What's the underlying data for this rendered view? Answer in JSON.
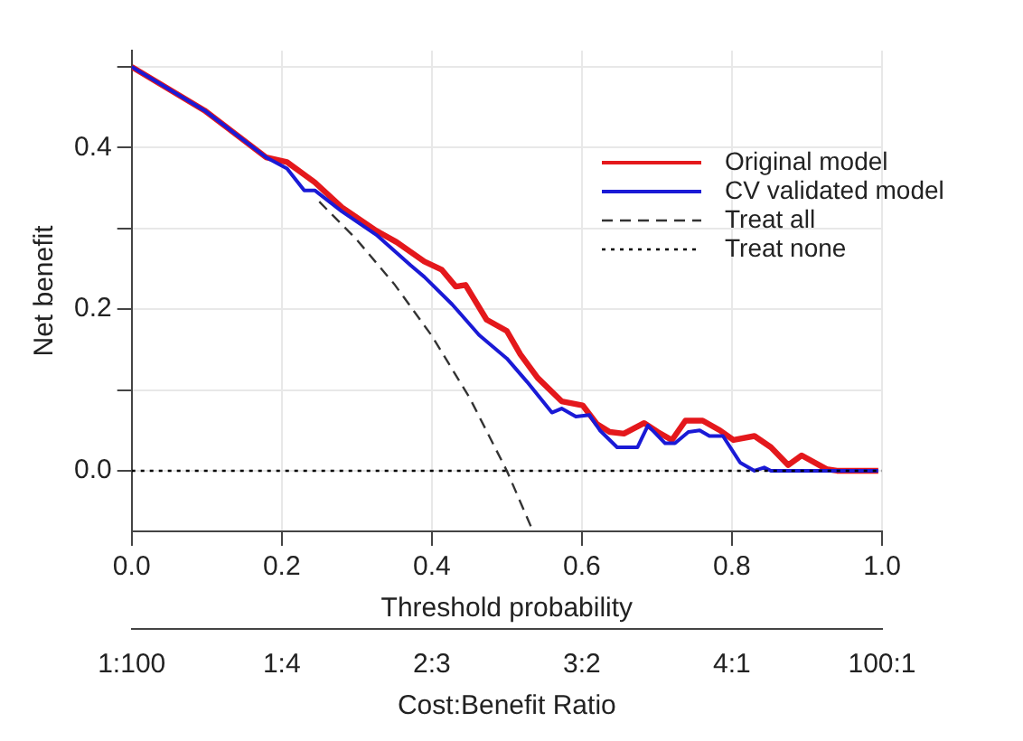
{
  "chart_data": {
    "type": "line",
    "xlabel": "Threshold probability",
    "ylabel": "Net benefit",
    "x2label": "Cost:Benefit Ratio",
    "xlim": [
      0,
      1
    ],
    "xticks": [
      {
        "value": 0,
        "label": "0.0"
      },
      {
        "value": 0.2,
        "label": "0.2"
      },
      {
        "value": 0.4,
        "label": "0.4"
      },
      {
        "value": 0.6,
        "label": "0.6"
      },
      {
        "value": 0.8,
        "label": "0.8"
      },
      {
        "value": 1,
        "label": "1.0"
      }
    ],
    "annotations": [
      "1:100",
      "1:4",
      "2:3",
      "3:2",
      "4:1",
      "100:1"
    ],
    "ylim": [
      -0.075,
      0.52
    ],
    "yticks": [
      {
        "value": 0,
        "label": "0.0"
      },
      {
        "value": 0.1,
        "label": null
      },
      {
        "value": 0.2,
        "label": "0.2"
      },
      {
        "value": 0.3,
        "label": null
      },
      {
        "value": 0.4,
        "label": "0.4"
      },
      {
        "value": 0.5,
        "label": null
      }
    ],
    "grid": true,
    "legend": "right",
    "series": [
      {
        "name": "Original model",
        "color": "#e4181c",
        "line_style": "solid",
        "x": [
          0,
          0.097,
          0.179,
          0.207,
          0.244,
          0.28,
          0.326,
          0.353,
          0.39,
          0.413,
          0.432,
          0.445,
          0.473,
          0.5,
          0.518,
          0.541,
          0.573,
          0.601,
          0.62,
          0.637,
          0.656,
          0.683,
          0.701,
          0.72,
          0.738,
          0.761,
          0.784,
          0.802,
          0.83,
          0.852,
          0.875,
          0.893,
          0.926,
          0.94,
          0.995
        ],
        "values": [
          0.5,
          0.446,
          0.388,
          0.382,
          0.357,
          0.326,
          0.297,
          0.283,
          0.259,
          0.249,
          0.228,
          0.23,
          0.187,
          0.173,
          0.144,
          0.115,
          0.086,
          0.081,
          0.058,
          0.048,
          0.046,
          0.059,
          0.048,
          0.038,
          0.062,
          0.062,
          0.05,
          0.038,
          0.043,
          0.029,
          0.007,
          0.019,
          0.002,
          0,
          0
        ]
      },
      {
        "name": "CV validated model",
        "color": "#1a1ad6",
        "line_style": "solid",
        "x": [
          0,
          0.097,
          0.179,
          0.207,
          0.23,
          0.244,
          0.28,
          0.326,
          0.372,
          0.39,
          0.427,
          0.463,
          0.5,
          0.527,
          0.56,
          0.573,
          0.592,
          0.61,
          0.624,
          0.647,
          0.674,
          0.688,
          0.711,
          0.724,
          0.742,
          0.757,
          0.77,
          0.788,
          0.811,
          0.83,
          0.843,
          0.852,
          0.995
        ],
        "values": [
          0.5,
          0.446,
          0.388,
          0.374,
          0.347,
          0.347,
          0.321,
          0.292,
          0.254,
          0.24,
          0.206,
          0.168,
          0.139,
          0.11,
          0.072,
          0.077,
          0.067,
          0.069,
          0.05,
          0.029,
          0.029,
          0.056,
          0.034,
          0.034,
          0.048,
          0.05,
          0.043,
          0.043,
          0.01,
          0,
          0.004,
          0,
          0
        ]
      },
      {
        "name": "Treat all",
        "color": "#333333",
        "line_style": "dashed",
        "x": [
          0.25,
          0.3,
          0.35,
          0.4,
          0.45,
          0.5,
          0.533
        ],
        "values": [
          0.333,
          0.286,
          0.231,
          0.167,
          0.091,
          0,
          -0.071
        ]
      },
      {
        "name": "Treat none",
        "color": "#000000",
        "line_style": "dotted",
        "x": [
          0,
          1
        ],
        "values": [
          0,
          0
        ]
      }
    ]
  }
}
